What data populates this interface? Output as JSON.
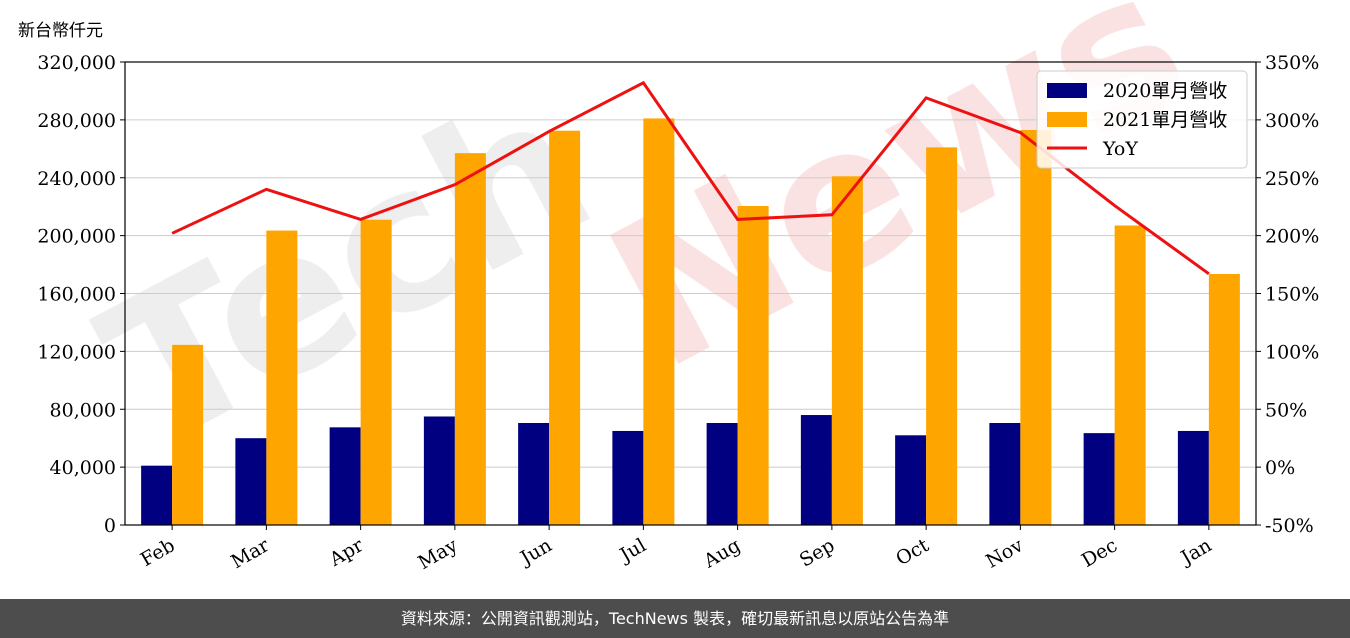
{
  "unit_label": "新台幣仟元",
  "footer_text": "資料來源：公開資訊觀測站，TechNews 製表，確切最新訊息以原站公告為準",
  "watermark": {
    "tech": "Tech",
    "news": "News"
  },
  "colors": {
    "series_2020": "#000080",
    "series_2021": "#ffa500",
    "yoy": "#ee1111",
    "grid": "#cccccc"
  },
  "chart_data": {
    "type": "bar",
    "categories": [
      "Feb",
      "Mar",
      "Apr",
      "May",
      "Jun",
      "Jul",
      "Aug",
      "Sep",
      "Oct",
      "Nov",
      "Dec",
      "Jan"
    ],
    "series": [
      {
        "name": "2020單月營收",
        "values": [
          41000,
          60000,
          67500,
          75000,
          70500,
          65000,
          70500,
          76000,
          62000,
          70500,
          63500,
          65000
        ]
      },
      {
        "name": "2021單月營收",
        "values": [
          124500,
          203500,
          211000,
          257000,
          272500,
          281000,
          220500,
          241000,
          261000,
          273000,
          207000,
          173500
        ]
      }
    ],
    "line_series": {
      "name": "YoY",
      "values": [
        202,
        240,
        214,
        244,
        290,
        332,
        214,
        218,
        319,
        289,
        226,
        167
      ]
    },
    "ylim": [
      0,
      320000
    ],
    "y_ticks": [
      "0",
      "40,000",
      "80,000",
      "120,000",
      "160,000",
      "200,000",
      "240,000",
      "280,000",
      "320,000"
    ],
    "y2lim": [
      -50,
      350
    ],
    "y2_ticks": [
      "-50%",
      "0%",
      "50%",
      "100%",
      "150%",
      "200%",
      "250%",
      "300%",
      "350%"
    ],
    "grid": true,
    "legend_position": "top-right"
  }
}
